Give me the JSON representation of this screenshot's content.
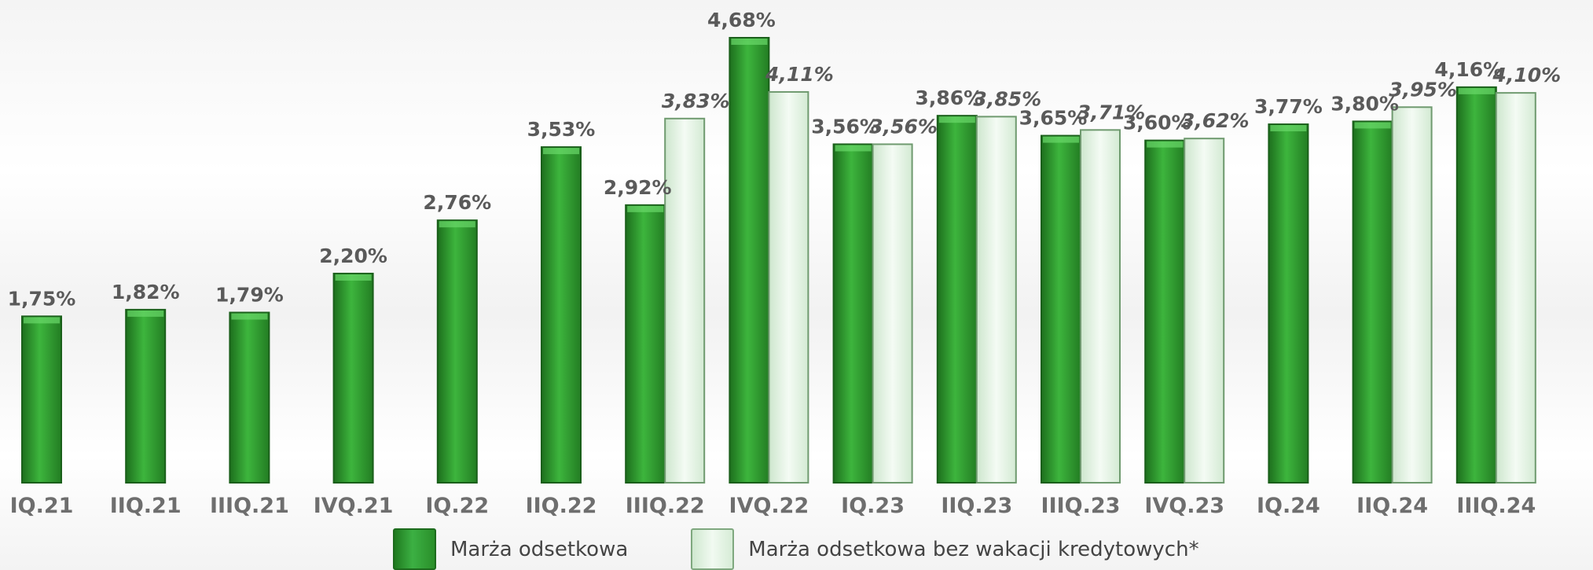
{
  "chart_data": {
    "type": "bar",
    "categories": [
      "IQ.21",
      "IIQ.21",
      "IIIQ.21",
      "IVQ.21",
      "IQ.22",
      "IIQ.22",
      "IIIQ.22",
      "IVQ.22",
      "IQ.23",
      "IIQ.23",
      "IIIQ.23",
      "IVQ.23",
      "IQ.24",
      "IIQ.24",
      "IIIQ.24"
    ],
    "series": [
      {
        "name": "Marża odsetkowa",
        "values": [
          1.75,
          1.82,
          1.79,
          2.2,
          2.76,
          3.53,
          2.92,
          4.68,
          3.56,
          3.86,
          3.65,
          3.6,
          3.77,
          3.8,
          4.16
        ],
        "labels": [
          "1,75%",
          "1,82%",
          "1,79%",
          "2,20%",
          "2,76%",
          "3,53%",
          "2,92%",
          "4,68%",
          "3,56%",
          "3,86%",
          "3,65%",
          "3,60%",
          "3,77%",
          "3,80%",
          "4,16%"
        ],
        "color": "#2e9a2e"
      },
      {
        "name": "Marża odsetkowa bez wakacji kredytowych*",
        "values": [
          null,
          null,
          null,
          null,
          null,
          null,
          3.83,
          4.11,
          3.56,
          3.85,
          3.71,
          3.62,
          null,
          3.95,
          4.1
        ],
        "labels": [
          null,
          null,
          null,
          null,
          null,
          null,
          "3,83%",
          "4,11%",
          "3,56%",
          "3,85%",
          "3,71%",
          "3,62%",
          null,
          "3,95%",
          "4,10%"
        ],
        "color": "#e6f4e6"
      }
    ],
    "ylim": [
      0,
      4.68
    ],
    "grid": false,
    "legend_position": "bottom"
  }
}
